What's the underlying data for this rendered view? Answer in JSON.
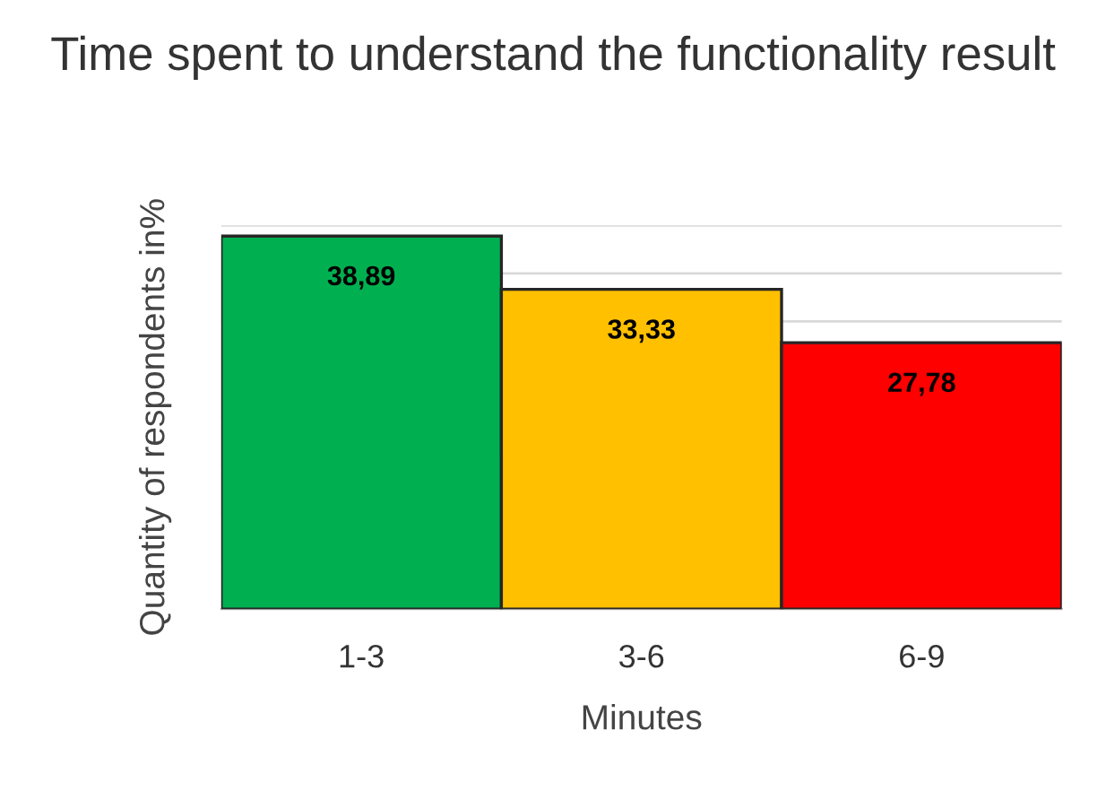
{
  "chart_data": {
    "type": "bar",
    "title": "Time spent to understand the functionality result",
    "xlabel": "Minutes",
    "ylabel": "Quantity of respondents in%",
    "categories": [
      "1-3",
      "3-6",
      "6-9"
    ],
    "values": [
      38.89,
      33.33,
      27.78
    ],
    "value_labels": [
      "38,89",
      "33,33",
      "27,78"
    ],
    "colors": [
      "#00b050",
      "#ffc000",
      "#ff0000"
    ],
    "ylim": [
      0,
      40
    ],
    "yticks": [
      {
        "value": 0,
        "label": null
      },
      {
        "value": 5,
        "label": null
      },
      {
        "value": 10,
        "label": null
      },
      {
        "value": 15,
        "label": null
      },
      {
        "value": 20,
        "label": null
      },
      {
        "value": 25,
        "label": null
      },
      {
        "value": 30,
        "label": null
      },
      {
        "value": 35,
        "label": null
      },
      {
        "value": 40,
        "label": null
      }
    ],
    "tick_labels": "x",
    "grid": "y",
    "legend": false
  }
}
